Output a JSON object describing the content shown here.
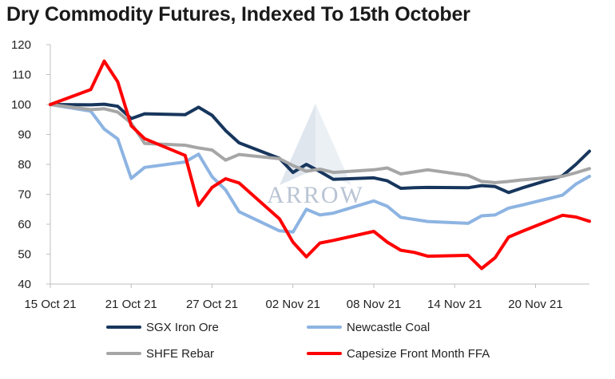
{
  "title": "Dry Commodity Futures, Indexed To 15th October",
  "watermark": {
    "text": "ARROW",
    "color": "#b9c4d3"
  },
  "chart_data": {
    "type": "line",
    "title": "Dry Commodity Futures, Indexed To 15th October",
    "xlabel": "",
    "ylabel": "",
    "ylim": [
      40,
      120
    ],
    "yticks": [
      40,
      50,
      60,
      70,
      80,
      90,
      100,
      110,
      120
    ],
    "xlim": [
      "2021-10-15",
      "2021-11-24"
    ],
    "xtick_labels": [
      "15 Oct 21",
      "21 Oct 21",
      "27 Oct 21",
      "02 Nov 21",
      "08 Nov 21",
      "14 Nov 21",
      "20 Nov 21"
    ],
    "xtick_dates": [
      "2021-10-15",
      "2021-10-21",
      "2021-10-27",
      "2021-11-02",
      "2021-11-08",
      "2021-11-14",
      "2021-11-20"
    ],
    "grid": false,
    "legend_position": "bottom",
    "series": [
      {
        "name": "SGX Iron Ore",
        "color": "#17365d",
        "points": [
          [
            "2021-10-15",
            100.0
          ],
          [
            "2021-10-18",
            99.9
          ],
          [
            "2021-10-19",
            100.1
          ],
          [
            "2021-10-20",
            99.4
          ],
          [
            "2021-10-21",
            95.3
          ],
          [
            "2021-10-22",
            96.9
          ],
          [
            "2021-10-25",
            96.6
          ],
          [
            "2021-10-26",
            99.1
          ],
          [
            "2021-10-27",
            96.4
          ],
          [
            "2021-10-28",
            91.3
          ],
          [
            "2021-10-29",
            87.2
          ],
          [
            "2021-11-01",
            82.0
          ],
          [
            "2021-11-02",
            77.3
          ],
          [
            "2021-11-03",
            80.0
          ],
          [
            "2021-11-04",
            77.6
          ],
          [
            "2021-11-05",
            75.0
          ],
          [
            "2021-11-08",
            75.5
          ],
          [
            "2021-11-09",
            74.5
          ],
          [
            "2021-11-10",
            72.0
          ],
          [
            "2021-11-11",
            72.2
          ],
          [
            "2021-11-12",
            72.3
          ],
          [
            "2021-11-15",
            72.2
          ],
          [
            "2021-11-16",
            72.9
          ],
          [
            "2021-11-17",
            72.6
          ],
          [
            "2021-11-18",
            70.6
          ],
          [
            "2021-11-19",
            72.1
          ],
          [
            "2021-11-22",
            76.2
          ],
          [
            "2021-11-23",
            80.0
          ],
          [
            "2021-11-24",
            84.4
          ]
        ]
      },
      {
        "name": "Newcastle Coal",
        "color": "#8db4e2",
        "points": [
          [
            "2021-10-15",
            100.0
          ],
          [
            "2021-10-18",
            97.8
          ],
          [
            "2021-10-19",
            91.8
          ],
          [
            "2021-10-20",
            88.5
          ],
          [
            "2021-10-21",
            75.3
          ],
          [
            "2021-10-22",
            79.0
          ],
          [
            "2021-10-25",
            80.8
          ],
          [
            "2021-10-26",
            83.4
          ],
          [
            "2021-10-27",
            75.9
          ],
          [
            "2021-10-28",
            71.5
          ],
          [
            "2021-10-29",
            64.2
          ],
          [
            "2021-11-01",
            57.8
          ],
          [
            "2021-11-02",
            57.4
          ],
          [
            "2021-11-03",
            65.0
          ],
          [
            "2021-11-04",
            63.1
          ],
          [
            "2021-11-05",
            63.7
          ],
          [
            "2021-11-08",
            67.8
          ],
          [
            "2021-11-09",
            66.0
          ],
          [
            "2021-11-10",
            62.3
          ],
          [
            "2021-11-11",
            61.6
          ],
          [
            "2021-11-12",
            60.9
          ],
          [
            "2021-11-15",
            60.3
          ],
          [
            "2021-11-16",
            62.8
          ],
          [
            "2021-11-17",
            63.1
          ],
          [
            "2021-11-18",
            65.4
          ],
          [
            "2021-11-19",
            66.4
          ],
          [
            "2021-11-22",
            69.7
          ],
          [
            "2021-11-23",
            73.4
          ],
          [
            "2021-11-24",
            76.0
          ]
        ]
      },
      {
        "name": "SHFE Rebar",
        "color": "#a6a6a6",
        "points": [
          [
            "2021-10-15",
            100.0
          ],
          [
            "2021-10-18",
            98.3
          ],
          [
            "2021-10-19",
            98.6
          ],
          [
            "2021-10-20",
            97.5
          ],
          [
            "2021-10-21",
            93.8
          ],
          [
            "2021-10-22",
            87.0
          ],
          [
            "2021-10-25",
            86.4
          ],
          [
            "2021-10-26",
            85.5
          ],
          [
            "2021-10-27",
            84.8
          ],
          [
            "2021-10-28",
            81.4
          ],
          [
            "2021-10-29",
            83.3
          ],
          [
            "2021-11-01",
            81.9
          ],
          [
            "2021-11-02",
            79.6
          ],
          [
            "2021-11-03",
            77.7
          ],
          [
            "2021-11-04",
            78.4
          ],
          [
            "2021-11-05",
            77.3
          ],
          [
            "2021-11-08",
            78.2
          ],
          [
            "2021-11-09",
            78.8
          ],
          [
            "2021-11-10",
            76.8
          ],
          [
            "2021-11-11",
            77.5
          ],
          [
            "2021-11-12",
            78.2
          ],
          [
            "2021-11-15",
            76.3
          ],
          [
            "2021-11-16",
            74.3
          ],
          [
            "2021-11-17",
            73.9
          ],
          [
            "2021-11-18",
            74.3
          ],
          [
            "2021-11-19",
            74.8
          ],
          [
            "2021-11-22",
            76.0
          ],
          [
            "2021-11-23",
            77.2
          ],
          [
            "2021-11-24",
            78.6
          ]
        ]
      },
      {
        "name": "Capesize Front Month FFA",
        "color": "#ff0000",
        "points": [
          [
            "2021-10-15",
            100.0
          ],
          [
            "2021-10-18",
            105.0
          ],
          [
            "2021-10-19",
            114.5
          ],
          [
            "2021-10-20",
            107.6
          ],
          [
            "2021-10-21",
            92.9
          ],
          [
            "2021-10-22",
            88.6
          ],
          [
            "2021-10-25",
            83.0
          ],
          [
            "2021-10-26",
            66.3
          ],
          [
            "2021-10-27",
            72.3
          ],
          [
            "2021-10-28",
            75.2
          ],
          [
            "2021-10-29",
            73.8
          ],
          [
            "2021-11-01",
            61.8
          ],
          [
            "2021-11-02",
            54.0
          ],
          [
            "2021-11-03",
            49.1
          ],
          [
            "2021-11-04",
            53.7
          ],
          [
            "2021-11-05",
            54.6
          ],
          [
            "2021-11-08",
            57.6
          ],
          [
            "2021-11-09",
            54.0
          ],
          [
            "2021-11-10",
            51.3
          ],
          [
            "2021-11-11",
            50.6
          ],
          [
            "2021-11-12",
            49.3
          ],
          [
            "2021-11-15",
            49.6
          ],
          [
            "2021-11-16",
            45.2
          ],
          [
            "2021-11-17",
            48.8
          ],
          [
            "2021-11-18",
            55.7
          ],
          [
            "2021-11-19",
            57.6
          ],
          [
            "2021-11-22",
            63.0
          ],
          [
            "2021-11-23",
            62.4
          ],
          [
            "2021-11-24",
            61.0
          ]
        ]
      }
    ]
  }
}
